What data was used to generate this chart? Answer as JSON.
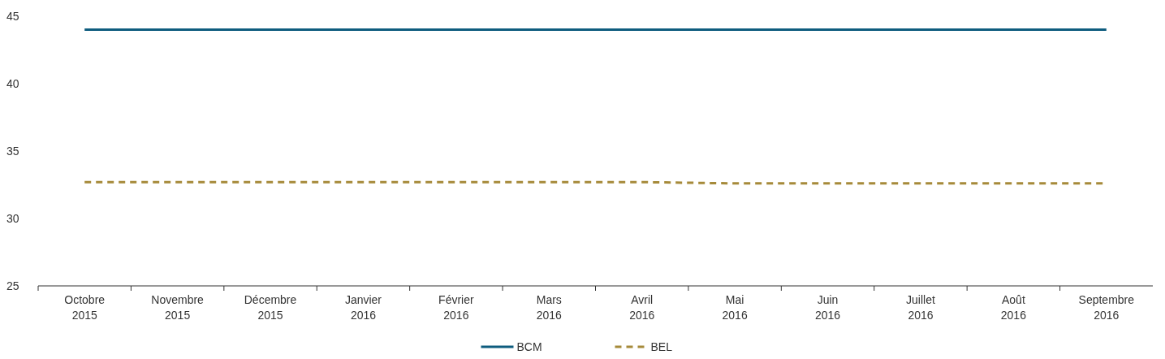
{
  "chart_data": {
    "type": "line",
    "categories": [
      "Octobre 2015",
      "Novembre 2015",
      "Décembre 2015",
      "Janvier 2016",
      "Février 2016",
      "Mars 2016",
      "Avril 2016",
      "Mai 2016",
      "Juin 2016",
      "Juillet 2016",
      "Août 2016",
      "Septembre 2016"
    ],
    "series": [
      {
        "name": "BCM",
        "color": "#0e5c7e",
        "line_style": "solid",
        "values": [
          44,
          44,
          44,
          44,
          44,
          44,
          44,
          44,
          44,
          44,
          44,
          44
        ]
      },
      {
        "name": "BEL",
        "color": "#a68a3a",
        "line_style": "dashed",
        "values": [
          32.7,
          32.7,
          32.7,
          32.7,
          32.7,
          32.7,
          32.7,
          32.6,
          32.6,
          32.6,
          32.6,
          32.6
        ]
      }
    ],
    "ylim": [
      25,
      45
    ],
    "yticks": [
      25,
      30,
      35,
      40,
      45
    ],
    "grid": false,
    "legend": "bottom"
  }
}
